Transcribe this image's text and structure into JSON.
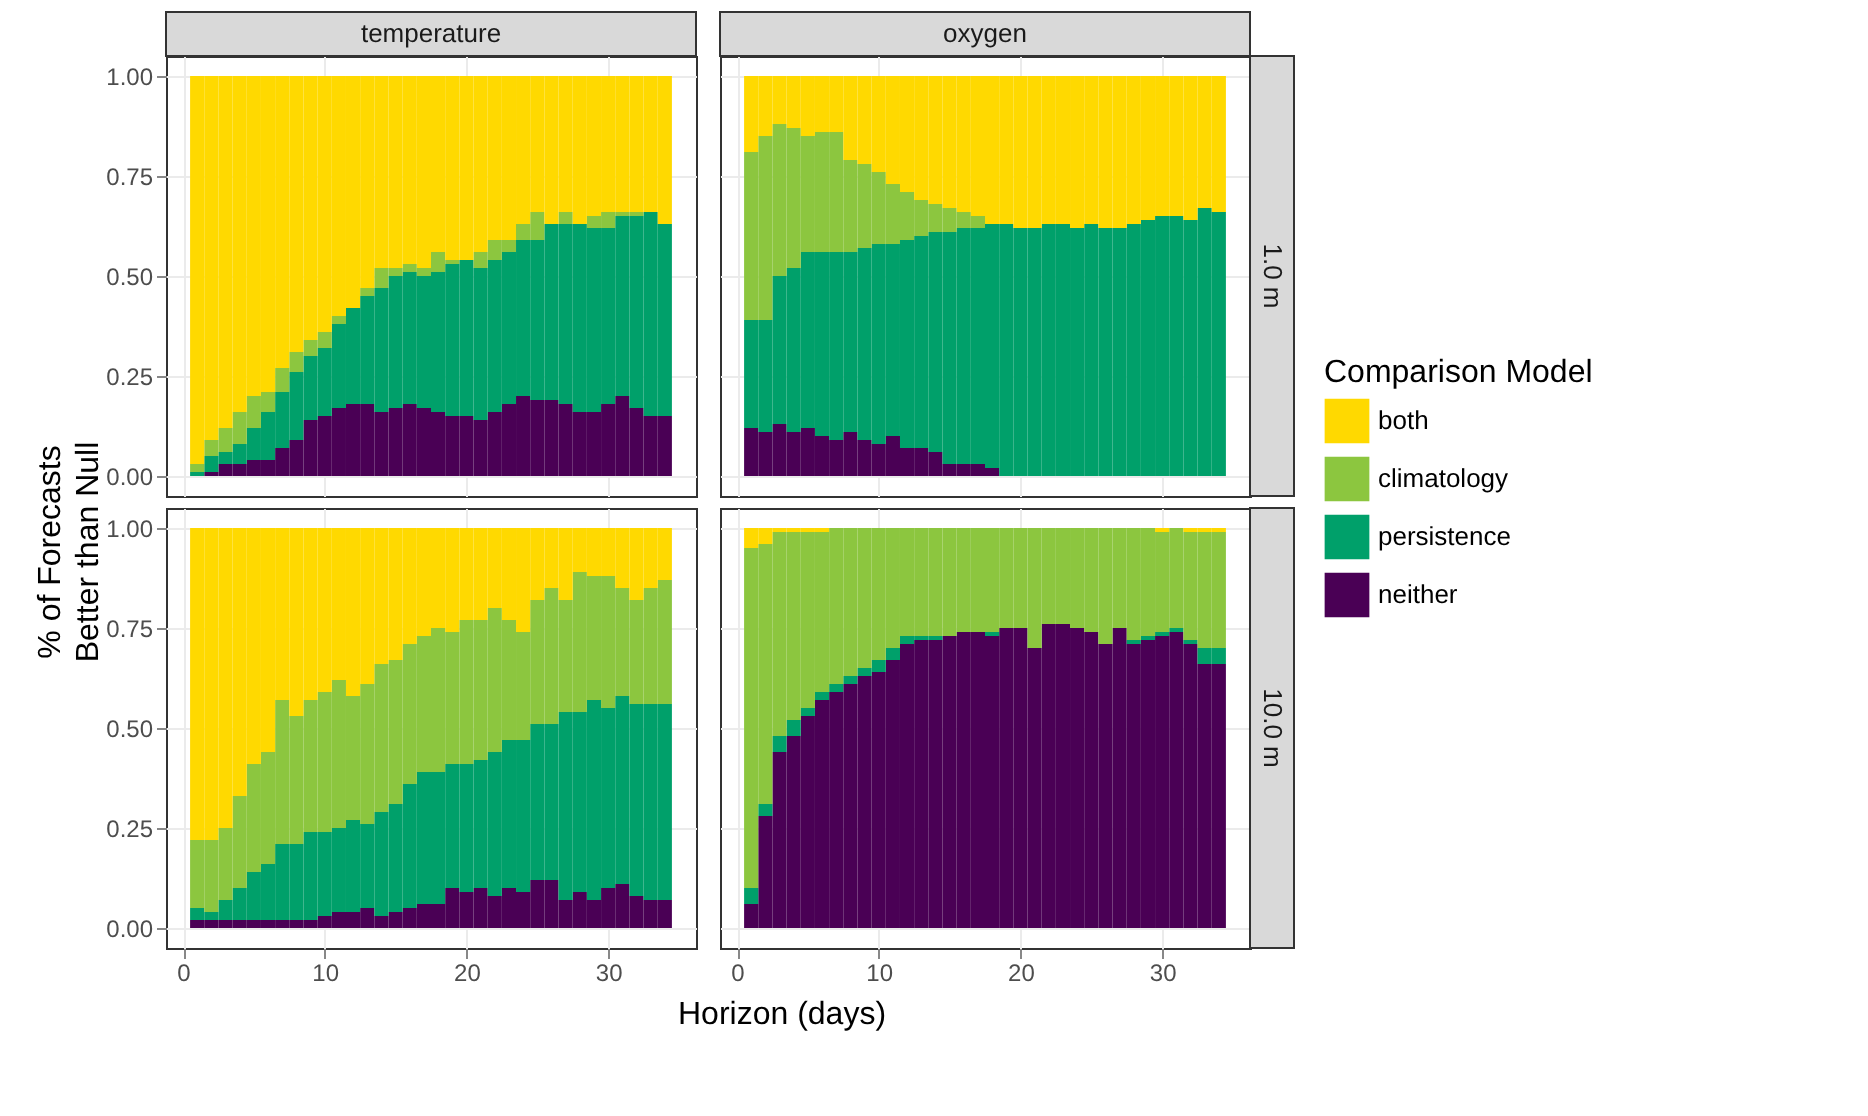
{
  "chart_data": [
    {
      "type": "bar",
      "stacked": true,
      "title": "temperature",
      "ylabel": "% of Forecasts\nBetter than Null",
      "grid": true,
      "tick_labels": "y",
      "legend": "right",
      "legend_title": "Comparison Model",
      "x": [
        1,
        2,
        3,
        4,
        5,
        6,
        7,
        8,
        9,
        10,
        11,
        12,
        13,
        14,
        15,
        16,
        17,
        18,
        19,
        20,
        21,
        22,
        23,
        24,
        25,
        26,
        27,
        28,
        29,
        30,
        31,
        32,
        33,
        34
      ],
      "xlim": [
        -1.2,
        36.2
      ],
      "ylim": [
        -0.05,
        1.05
      ],
      "xticks": [
        0,
        10,
        20,
        30
      ],
      "yticks": [
        {
          "value": 0,
          "label": "0.00"
        },
        {
          "value": 0.25,
          "label": "0.25"
        },
        {
          "value": 0.5,
          "label": "0.50"
        },
        {
          "value": 0.75,
          "label": "0.75"
        },
        {
          "value": 1,
          "label": "1.00"
        }
      ],
      "series": [
        {
          "name": "neither",
          "color": "#4a0055",
          "values": [
            0,
            0.01,
            0.03,
            0.03,
            0.04,
            0.04,
            0.07,
            0.09,
            0.14,
            0.15,
            0.17,
            0.18,
            0.18,
            0.16,
            0.17,
            0.18,
            0.17,
            0.16,
            0.15,
            0.15,
            0.14,
            0.16,
            0.18,
            0.2,
            0.19,
            0.19,
            0.18,
            0.16,
            0.16,
            0.18,
            0.2,
            0.17,
            0.15,
            0.15
          ]
        },
        {
          "name": "persistence",
          "color": "#00a06a",
          "values": [
            0.01,
            0.04,
            0.03,
            0.05,
            0.08,
            0.12,
            0.14,
            0.17,
            0.16,
            0.17,
            0.21,
            0.24,
            0.27,
            0.31,
            0.33,
            0.33,
            0.33,
            0.35,
            0.38,
            0.39,
            0.38,
            0.38,
            0.38,
            0.39,
            0.4,
            0.44,
            0.45,
            0.47,
            0.46,
            0.44,
            0.45,
            0.48,
            0.51,
            0.48
          ]
        },
        {
          "name": "climatology",
          "color": "#8cc63f",
          "values": [
            0.02,
            0.04,
            0.06,
            0.08,
            0.08,
            0.05,
            0.06,
            0.05,
            0.04,
            0.04,
            0.02,
            0,
            0.02,
            0.05,
            0.02,
            0.02,
            0.02,
            0.05,
            0.01,
            0,
            0.04,
            0.05,
            0.03,
            0.04,
            0.07,
            0,
            0.03,
            0,
            0.03,
            0.04,
            0.01,
            0.01,
            0,
            0
          ]
        },
        {
          "name": "both",
          "color": "#ffd900",
          "values": [
            0.97,
            0.91,
            0.88,
            0.84,
            0.8,
            0.79,
            0.73,
            0.69,
            0.66,
            0.64,
            0.6,
            0.58,
            0.53,
            0.48,
            0.48,
            0.47,
            0.48,
            0.44,
            0.46,
            0.46,
            0.44,
            0.41,
            0.41,
            0.37,
            0.34,
            0.37,
            0.34,
            0.37,
            0.35,
            0.34,
            0.34,
            0.34,
            0.34,
            0.37
          ]
        }
      ]
    },
    {
      "type": "bar",
      "stacked": true,
      "title": "oxygen",
      "y2label": "1.0 m",
      "grid": true,
      "tick_labels": false,
      "legend": "right",
      "x": [
        1,
        2,
        3,
        4,
        5,
        6,
        7,
        8,
        9,
        10,
        11,
        12,
        13,
        14,
        15,
        16,
        17,
        18,
        19,
        20,
        21,
        22,
        23,
        24,
        25,
        26,
        27,
        28,
        29,
        30,
        31,
        32,
        33,
        34
      ],
      "xlim": [
        -1.2,
        36.2
      ],
      "ylim": [
        -0.05,
        1.05
      ],
      "xticks": [
        0,
        10,
        20,
        30
      ],
      "yticks": [
        0,
        0.25,
        0.5,
        0.75,
        1
      ],
      "series": [
        {
          "color": "#4a0055",
          "values": [
            0.12,
            0.11,
            0.13,
            0.11,
            0.12,
            0.1,
            0.09,
            0.11,
            0.09,
            0.08,
            0.1,
            0.07,
            0.07,
            0.06,
            0.03,
            0.03,
            0.03,
            0.02,
            0,
            0,
            0,
            0,
            0,
            0,
            0,
            0,
            0,
            0,
            0,
            0,
            0,
            0,
            0,
            0
          ]
        },
        {
          "color": "#00a06a",
          "values": [
            0.27,
            0.28,
            0.37,
            0.41,
            0.44,
            0.46,
            0.47,
            0.45,
            0.48,
            0.5,
            0.48,
            0.52,
            0.53,
            0.55,
            0.58,
            0.59,
            0.59,
            0.61,
            0.63,
            0.62,
            0.62,
            0.63,
            0.63,
            0.62,
            0.63,
            0.62,
            0.62,
            0.63,
            0.64,
            0.65,
            0.65,
            0.64,
            0.67,
            0.66
          ]
        },
        {
          "color": "#8cc63f",
          "values": [
            0.42,
            0.46,
            0.38,
            0.35,
            0.29,
            0.3,
            0.3,
            0.23,
            0.21,
            0.18,
            0.15,
            0.12,
            0.09,
            0.07,
            0.06,
            0.04,
            0.03,
            0,
            0,
            0,
            0,
            0,
            0,
            0,
            0,
            0,
            0,
            0,
            0,
            0,
            0,
            0,
            0,
            0
          ]
        },
        {
          "color": "#ffd900",
          "values": [
            0.19,
            0.15,
            0.12,
            0.13,
            0.15,
            0.14,
            0.14,
            0.21,
            0.22,
            0.24,
            0.27,
            0.29,
            0.31,
            0.32,
            0.33,
            0.34,
            0.35,
            0.37,
            0.37,
            0.38,
            0.38,
            0.37,
            0.37,
            0.38,
            0.37,
            0.38,
            0.38,
            0.37,
            0.36,
            0.35,
            0.35,
            0.36,
            0.33,
            0.34
          ]
        }
      ]
    },
    {
      "type": "bar",
      "stacked": true,
      "xlabel": "Horizon (days)",
      "grid": true,
      "legend": "right",
      "x": [
        1,
        2,
        3,
        4,
        5,
        6,
        7,
        8,
        9,
        10,
        11,
        12,
        13,
        14,
        15,
        16,
        17,
        18,
        19,
        20,
        21,
        22,
        23,
        24,
        25,
        26,
        27,
        28,
        29,
        30,
        31,
        32,
        33,
        34
      ],
      "xlim": [
        -1.2,
        36.2
      ],
      "ylim": [
        -0.05,
        1.05
      ],
      "xticks": [
        0,
        10,
        20,
        30
      ],
      "yticks": [
        {
          "value": 0,
          "label": "0.00"
        },
        {
          "value": 0.25,
          "label": "0.25"
        },
        {
          "value": 0.5,
          "label": "0.50"
        },
        {
          "value": 0.75,
          "label": "0.75"
        },
        {
          "value": 1,
          "label": "1.00"
        }
      ],
      "series": [
        {
          "color": "#4a0055",
          "values": [
            0.02,
            0.02,
            0.02,
            0.02,
            0.02,
            0.02,
            0.02,
            0.02,
            0.02,
            0.03,
            0.04,
            0.04,
            0.05,
            0.03,
            0.04,
            0.05,
            0.06,
            0.06,
            0.1,
            0.09,
            0.1,
            0.08,
            0.1,
            0.09,
            0.12,
            0.12,
            0.07,
            0.09,
            0.07,
            0.1,
            0.11,
            0.08,
            0.07,
            0.07
          ]
        },
        {
          "color": "#00a06a",
          "values": [
            0.03,
            0.02,
            0.05,
            0.08,
            0.12,
            0.14,
            0.19,
            0.19,
            0.22,
            0.21,
            0.21,
            0.23,
            0.21,
            0.26,
            0.27,
            0.31,
            0.33,
            0.33,
            0.31,
            0.32,
            0.32,
            0.36,
            0.37,
            0.38,
            0.39,
            0.39,
            0.47,
            0.45,
            0.5,
            0.45,
            0.47,
            0.48,
            0.49,
            0.49
          ]
        },
        {
          "color": "#8cc63f",
          "values": [
            0.17,
            0.18,
            0.18,
            0.23,
            0.27,
            0.28,
            0.36,
            0.32,
            0.33,
            0.35,
            0.37,
            0.31,
            0.35,
            0.37,
            0.36,
            0.35,
            0.34,
            0.36,
            0.33,
            0.36,
            0.35,
            0.36,
            0.3,
            0.27,
            0.31,
            0.34,
            0.28,
            0.35,
            0.31,
            0.33,
            0.27,
            0.26,
            0.29,
            0.31
          ]
        },
        {
          "color": "#ffd900",
          "values": [
            0.78,
            0.78,
            0.75,
            0.67,
            0.59,
            0.56,
            0.43,
            0.47,
            0.43,
            0.41,
            0.38,
            0.42,
            0.39,
            0.34,
            0.33,
            0.29,
            0.27,
            0.25,
            0.26,
            0.23,
            0.23,
            0.2,
            0.23,
            0.26,
            0.18,
            0.15,
            0.18,
            0.11,
            0.12,
            0.12,
            0.15,
            0.18,
            0.15,
            0.13
          ]
        }
      ]
    },
    {
      "type": "bar",
      "stacked": true,
      "y2label": "10.0 m",
      "grid": true,
      "tick_labels": "x",
      "legend": "right",
      "x": [
        1,
        2,
        3,
        4,
        5,
        6,
        7,
        8,
        9,
        10,
        11,
        12,
        13,
        14,
        15,
        16,
        17,
        18,
        19,
        20,
        21,
        22,
        23,
        24,
        25,
        26,
        27,
        28,
        29,
        30,
        31,
        32,
        33,
        34
      ],
      "xlim": [
        -1.2,
        36.2
      ],
      "ylim": [
        -0.05,
        1.05
      ],
      "xticks": [
        0,
        10,
        20,
        30
      ],
      "yticks": [
        0,
        0.25,
        0.5,
        0.75,
        1
      ],
      "series": [
        {
          "color": "#4a0055",
          "values": [
            0.06,
            0.28,
            0.44,
            0.48,
            0.53,
            0.57,
            0.59,
            0.61,
            0.63,
            0.64,
            0.67,
            0.71,
            0.72,
            0.72,
            0.73,
            0.74,
            0.74,
            0.73,
            0.75,
            0.75,
            0.7,
            0.76,
            0.76,
            0.75,
            0.74,
            0.71,
            0.75,
            0.71,
            0.72,
            0.73,
            0.74,
            0.71,
            0.66,
            0.66
          ]
        },
        {
          "color": "#00a06a",
          "values": [
            0.04,
            0.03,
            0.04,
            0.04,
            0.02,
            0.02,
            0.02,
            0.02,
            0.02,
            0.03,
            0.03,
            0.02,
            0.01,
            0.01,
            0,
            0,
            0,
            0.01,
            0,
            0,
            0,
            0,
            0,
            0,
            0,
            0,
            0,
            0.01,
            0.01,
            0.01,
            0.01,
            0.01,
            0.04,
            0.04
          ]
        },
        {
          "color": "#8cc63f",
          "values": [
            0.85,
            0.65,
            0.51,
            0.47,
            0.44,
            0.4,
            0.39,
            0.37,
            0.35,
            0.33,
            0.3,
            0.27,
            0.27,
            0.27,
            0.27,
            0.26,
            0.26,
            0.26,
            0.25,
            0.25,
            0.3,
            0.24,
            0.24,
            0.25,
            0.26,
            0.29,
            0.25,
            0.28,
            0.27,
            0.25,
            0.25,
            0.27,
            0.29,
            0.29
          ]
        },
        {
          "color": "#ffd900",
          "values": [
            0.05,
            0.04,
            0.01,
            0.01,
            0.01,
            0.01,
            0,
            0,
            0,
            0,
            0,
            0,
            0,
            0,
            0,
            0,
            0,
            0,
            0,
            0,
            0,
            0,
            0,
            0,
            0,
            0,
            0,
            0,
            0,
            0.01,
            0,
            0.01,
            0.01,
            0.01
          ]
        }
      ]
    }
  ]
}
